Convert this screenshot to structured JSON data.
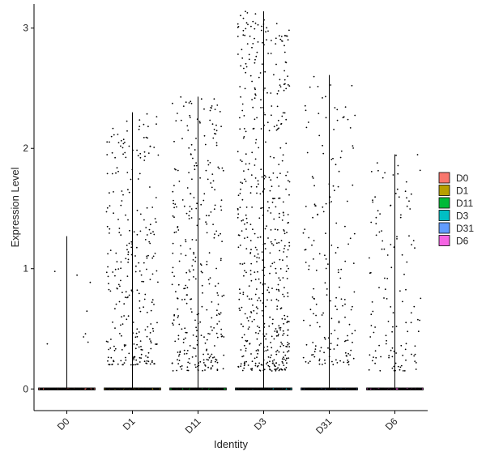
{
  "chart_data": {
    "type": "scatter",
    "subtype": "violin-jitter",
    "title": "",
    "xlabel": "Identity",
    "ylabel": "Expression Level",
    "categories": [
      "D0",
      "D1",
      "D11",
      "D3",
      "D31",
      "D6"
    ],
    "ylim": [
      -0.18,
      3.2
    ],
    "yticks": [
      0,
      1,
      2,
      3
    ],
    "grid": false,
    "legend_position": "right",
    "series": [
      {
        "name": "D0",
        "color": "#F8766D",
        "max": 1.27,
        "n_zero": 120,
        "n_expr": 8,
        "expr_range": [
          0.3,
          1.27
        ]
      },
      {
        "name": "D1",
        "color": "#B79F00",
        "max": 2.3,
        "n_zero": 120,
        "n_expr": 280,
        "expr_range": [
          0.2,
          2.3
        ]
      },
      {
        "name": "D11",
        "color": "#00BA38",
        "max": 2.43,
        "n_zero": 120,
        "n_expr": 320,
        "expr_range": [
          0.15,
          2.43
        ]
      },
      {
        "name": "D3",
        "color": "#00BFC4",
        "max": 3.14,
        "n_zero": 120,
        "n_expr": 560,
        "expr_range": [
          0.15,
          3.14
        ]
      },
      {
        "name": "D31",
        "color": "#619CFF",
        "max": 2.61,
        "n_zero": 120,
        "n_expr": 180,
        "expr_range": [
          0.2,
          2.61
        ]
      },
      {
        "name": "D6",
        "color": "#F564E3",
        "max": 1.95,
        "n_zero": 120,
        "n_expr": 130,
        "expr_range": [
          0.15,
          1.95
        ]
      }
    ]
  }
}
